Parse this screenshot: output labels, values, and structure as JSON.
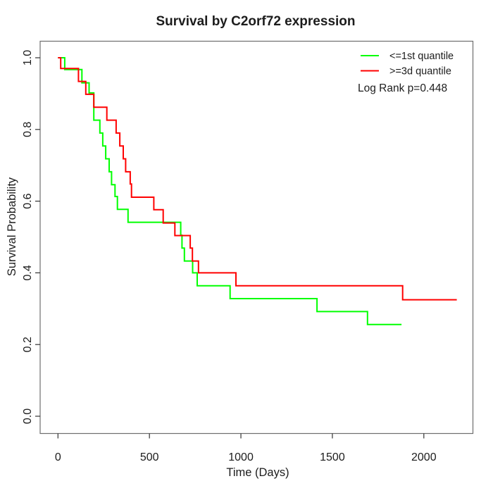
{
  "title": "Survival by C2orf72 expression",
  "x_axis": {
    "label": "Time (Days)",
    "tick_labels": [
      "0",
      "500",
      "1000",
      "1500",
      "2000"
    ],
    "tick_values": [
      0,
      500,
      1000,
      1500,
      2000
    ],
    "range_days": [
      0,
      2270
    ]
  },
  "y_axis": {
    "label": "Survival Probability",
    "tick_labels": [
      "0.0",
      "0.2",
      "0.4",
      "0.6",
      "0.8",
      "1.0"
    ],
    "tick_values": [
      0,
      0.2,
      0.4,
      0.6,
      0.8,
      1.0
    ],
    "range": [
      0,
      1
    ]
  },
  "legend": {
    "items": [
      {
        "label": "<=1st quantile",
        "color": "#00ff00"
      },
      {
        "label": ">=3d quantile",
        "color": "#ff0000"
      }
    ],
    "note": "Log Rank p=0.448"
  },
  "chart_data": {
    "type": "line",
    "subtype": "kaplan-meier-step",
    "title": "Survival by C2orf72 expression",
    "xlabel": "Time (Days)",
    "ylabel": "Survival Probability",
    "xlim": [
      0,
      2270
    ],
    "ylim": [
      0,
      1
    ],
    "x_ticks": [
      0,
      500,
      1000,
      1500,
      2000
    ],
    "y_ticks": [
      0,
      0.2,
      0.4,
      0.6,
      0.8,
      1.0
    ],
    "grid": false,
    "legend_position": "top-right",
    "annotation": "Log Rank p=0.448",
    "series": [
      {
        "name": "<=1st quantile",
        "color": "#00ff00",
        "start": [
          0,
          1.0
        ],
        "steps": [
          [
            37,
            0.967
          ],
          [
            131,
            0.93
          ],
          [
            170,
            0.902
          ],
          [
            196,
            0.826
          ],
          [
            229,
            0.79
          ],
          [
            245,
            0.754
          ],
          [
            261,
            0.718
          ],
          [
            280,
            0.682
          ],
          [
            293,
            0.646
          ],
          [
            312,
            0.613
          ],
          [
            325,
            0.577
          ],
          [
            383,
            0.541
          ],
          [
            671,
            0.505
          ],
          [
            678,
            0.469
          ],
          [
            691,
            0.433
          ],
          [
            736,
            0.4
          ],
          [
            761,
            0.364
          ],
          [
            941,
            0.328
          ],
          [
            1416,
            0.292
          ],
          [
            1692,
            0.256
          ]
        ],
        "end_day": 1878
      },
      {
        "name": ">=3d quantile",
        "color": "#ff0000",
        "start": [
          0,
          1.0
        ],
        "steps": [
          [
            15,
            0.97
          ],
          [
            112,
            0.934
          ],
          [
            152,
            0.898
          ],
          [
            196,
            0.862
          ],
          [
            267,
            0.826
          ],
          [
            318,
            0.79
          ],
          [
            338,
            0.754
          ],
          [
            357,
            0.718
          ],
          [
            370,
            0.682
          ],
          [
            395,
            0.648
          ],
          [
            402,
            0.611
          ],
          [
            524,
            0.576
          ],
          [
            575,
            0.539
          ],
          [
            639,
            0.504
          ],
          [
            723,
            0.469
          ],
          [
            735,
            0.433
          ],
          [
            768,
            0.4
          ],
          [
            973,
            0.364
          ],
          [
            1884,
            0.325
          ]
        ],
        "end_day": 2180
      }
    ]
  }
}
